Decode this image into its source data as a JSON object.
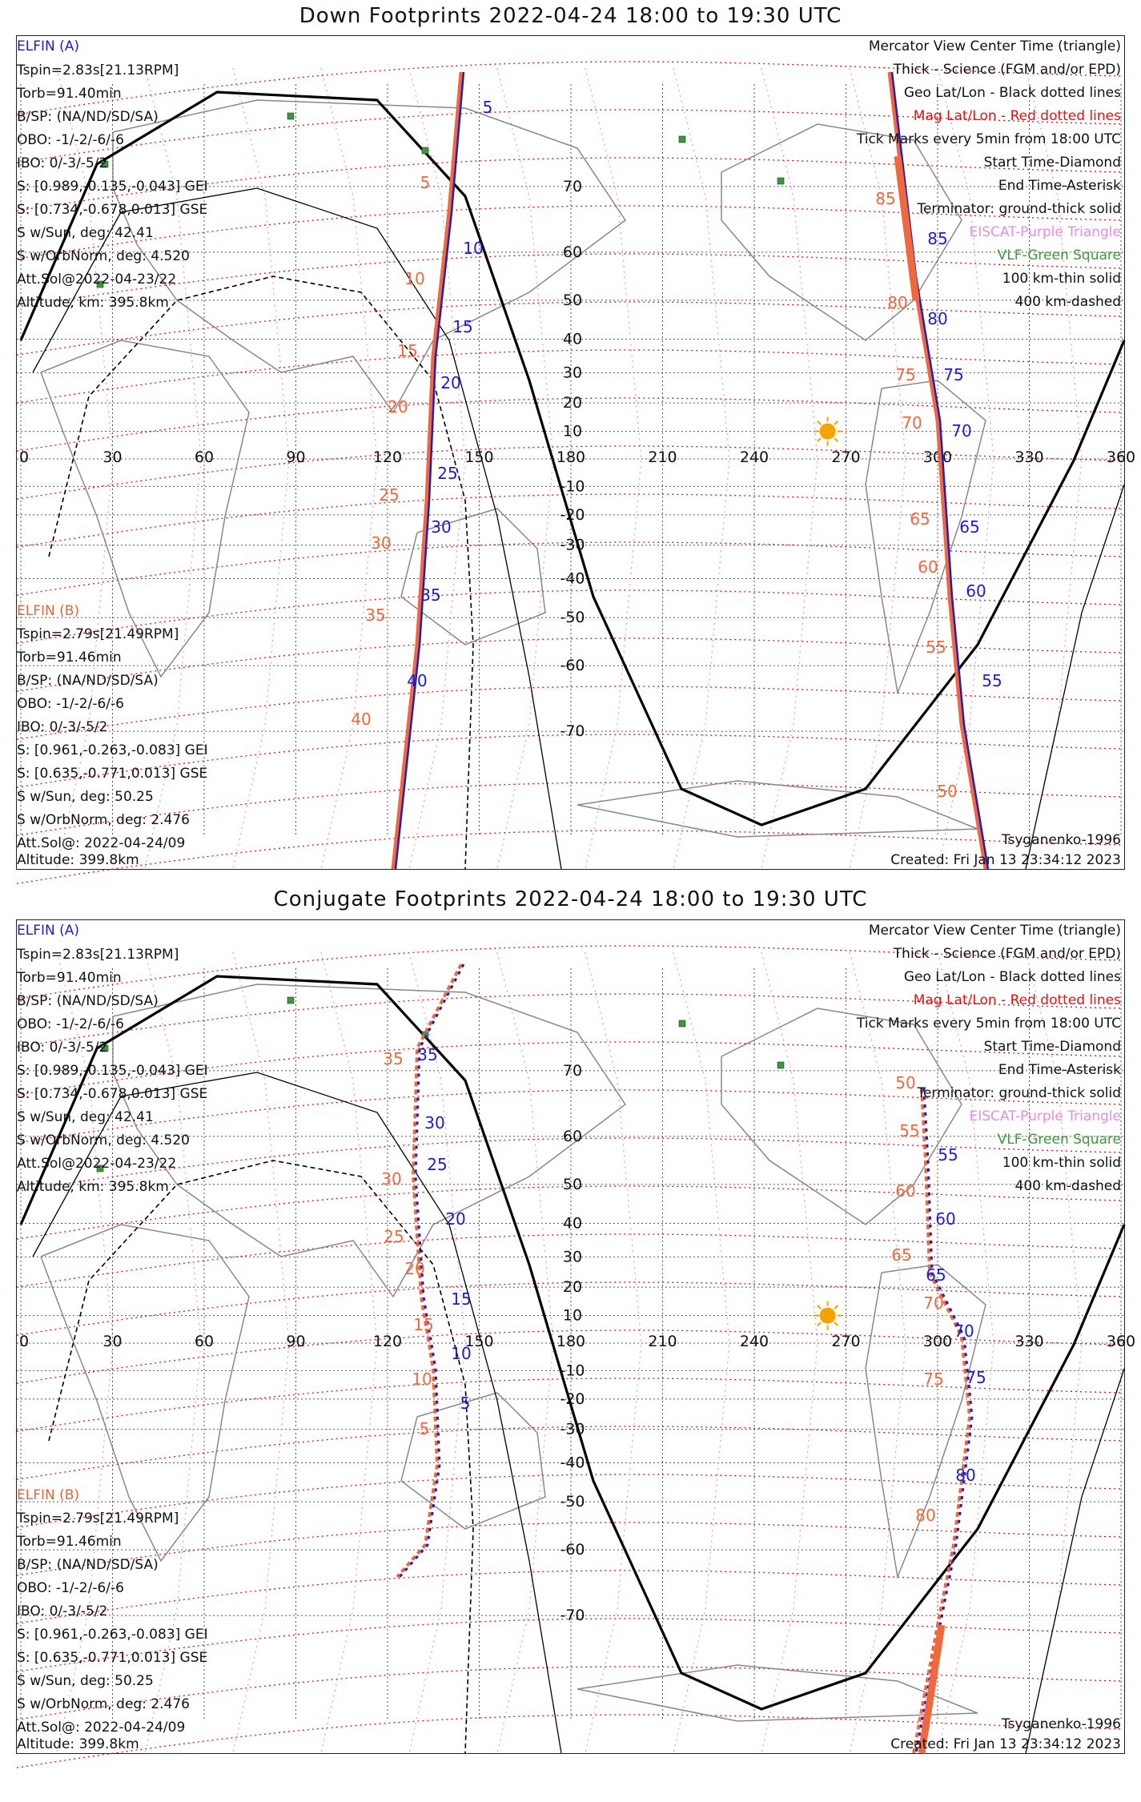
{
  "panels": [
    {
      "title": "Down Footprints 2022-04-24 18:00 to 19:30 UTC",
      "sat_a": {
        "name": "ELFIN (A)",
        "lines": [
          "Tspin=2.83s[21.13RPM]",
          "Torb=91.40min",
          "B/SP: (NA/ND/SD/SA)",
          "OBO: -1/-2/-6/-6",
          "IBO: 0/-3/-5/2",
          "S: [0.989,-0.135,-0.043] GEI",
          "S: [0.734,-0.678,0.013] GSE",
          "S w/Sun, deg: 42.41",
          "S w/OrbNorm, deg: 4.520",
          "Att.Sol@2022-04-23/22",
          "Altitude, km: 395.8km"
        ]
      },
      "sat_b": {
        "name": "ELFIN (B)",
        "lines": [
          "Tspin=2.79s[21.49RPM]",
          "Torb=91.46min",
          "B/SP: (NA/ND/SD/SA)",
          "OBO: -1/-2/-6/-6",
          "IBO: 0/-3/-5/2",
          "S: [0.961,-0.263,-0.083] GEI",
          "S: [0.635,-0.771,0.013] GSE",
          "S w/Sun, deg: 50.25",
          "S w/OrbNorm, deg: 2.476",
          "Att.Sol@: 2022-04-24/09",
          "Altitude: 399.8km"
        ]
      },
      "legend": {
        "view": "Mercator View Center Time (triangle)",
        "thick": "Thick - Science (FGM and/or EPD)",
        "geo": "Geo Lat/Lon - Black dotted lines",
        "mag": "Mag Lat/Lon - Red dotted lines",
        "ticks": "Tick Marks every 5min from 18:00 UTC",
        "start": "Start Time-Diamond",
        "end": "End Time-Asterisk",
        "terminator": "Terminator: ground-thick solid",
        "eiscat": "EISCAT-Purple Triangle",
        "vlf": "VLF-Green Square",
        "km100": "100 km-thin solid",
        "km400": "400 km-dashed"
      },
      "model": "Tsyganenko-1996",
      "created": "Created: Fri Jan 13 23:34:12 2023"
    },
    {
      "title": "Conjugate Footprints 2022-04-24 18:00 to 19:30 UTC",
      "sat_a": {
        "name": "ELFIN (A)",
        "lines": [
          "Tspin=2.83s[21.13RPM]",
          "Torb=91.40min",
          "B/SP: (NA/ND/SD/SA)",
          "OBO: -1/-2/-6/-6",
          "IBO: 0/-3/-5/2",
          "S: [0.989,-0.135,-0.043] GEI",
          "S: [0.734,-0.678,0.013] GSE",
          "S w/Sun, deg: 42.41",
          "S w/OrbNorm, deg: 4.520",
          "Att.Sol@2022-04-23/22",
          "Altitude, km: 395.8km"
        ]
      },
      "sat_b": {
        "name": "ELFIN (B)",
        "lines": [
          "Tspin=2.79s[21.49RPM]",
          "Torb=91.46min",
          "B/SP: (NA/ND/SD/SA)",
          "OBO: -1/-2/-6/-6",
          "IBO: 0/-3/-5/2",
          "S: [0.961,-0.263,-0.083] GEI",
          "S: [0.635,-0.771,0.013] GSE",
          "S w/Sun, deg: 50.25",
          "S w/OrbNorm, deg: 2.476",
          "Att.Sol@: 2022-04-24/09",
          "Altitude: 399.8km"
        ]
      },
      "legend": {
        "view": "Mercator View Center Time (triangle)",
        "thick": "Thick - Science (FGM and/or EPD)",
        "geo": "Geo Lat/Lon - Black dotted lines",
        "mag": "Mag Lat/Lon - Red dotted lines",
        "ticks": "Tick Marks every 5min from 18:00 UTC",
        "start": "Start Time-Diamond",
        "end": "End Time-Asterisk",
        "terminator": "Terminator: ground-thick solid",
        "eiscat": "EISCAT-Purple Triangle",
        "vlf": "VLF-Green Square",
        "km100": "100 km-thin solid",
        "km400": "400 km-dashed"
      },
      "model": "Tsyganenko-1996",
      "created": "Created: Fri Jan 13 23:34:12 2023"
    }
  ],
  "lon_ticks": [
    "0",
    "30",
    "60",
    "90",
    "120",
    "150",
    "180",
    "210",
    "240",
    "270",
    "300",
    "330",
    "360"
  ],
  "lat_ticks": [
    "70",
    "60",
    "50",
    "40",
    "30",
    "20",
    "10",
    "-10",
    "-20",
    "-30",
    "-40",
    "-50",
    "-60",
    "-70"
  ],
  "track_labels_down": {
    "a": [
      "5",
      "10",
      "15",
      "20",
      "25",
      "30",
      "35",
      "40",
      "55",
      "60",
      "65",
      "70",
      "75",
      "80",
      "85"
    ],
    "b": [
      "5",
      "10",
      "15",
      "20",
      "25",
      "30",
      "35",
      "40",
      "50",
      "55",
      "60",
      "65",
      "70",
      "75",
      "80",
      "85"
    ]
  },
  "track_labels_conj": {
    "a": [
      "5",
      "10",
      "15",
      "20",
      "25",
      "30",
      "35",
      "55",
      "60",
      "65",
      "70",
      "75",
      "80"
    ],
    "b": [
      "5",
      "10",
      "15",
      "20",
      "25",
      "30",
      "35",
      "50",
      "55",
      "60",
      "65",
      "70",
      "75",
      "80"
    ]
  },
  "colors": {
    "elfin_a": "#1d1dcc",
    "elfin_b": "#f0683c",
    "mag_grid": "#e81010",
    "geo_grid": "#555555",
    "eiscat": "#e58ee0",
    "vlf": "#3a9a3a",
    "sun": "#f5a300"
  }
}
